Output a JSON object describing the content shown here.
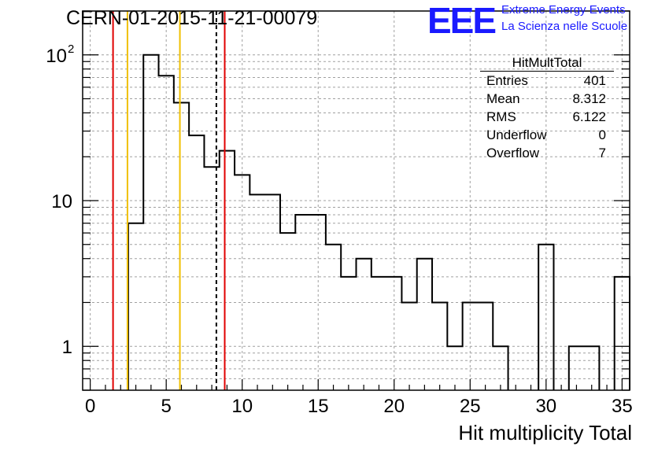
{
  "header": {
    "run_id": "CERN-01-2015-11-21-00079",
    "logo_text": "EEE",
    "logo_line1": "Extreme Energy Events",
    "logo_line2": "La Scienza nelle Scuole"
  },
  "stats": {
    "title": "HitMultTotal",
    "rows": [
      {
        "label": "Entries",
        "value": "401"
      },
      {
        "label": "Mean",
        "value": "8.312"
      },
      {
        "label": "RMS",
        "value": "6.122"
      },
      {
        "label": "Underflow",
        "value": "0"
      },
      {
        "label": "Overflow",
        "value": "7"
      }
    ]
  },
  "colors": {
    "red": "#e00000",
    "yellow": "#f0c000",
    "grid": "#a0a0a0",
    "axis": "#000000",
    "logo": "#1a1aff"
  },
  "chart_data": {
    "type": "bar",
    "histogram": true,
    "xlabel": "Hit multiplicity Total",
    "ylabel": "",
    "xlim": [
      -0.5,
      35.5
    ],
    "ylim": [
      0.5,
      200
    ],
    "yscale": "log",
    "grid": true,
    "x_ticks": [
      "0",
      "5",
      "10",
      "15",
      "20",
      "25",
      "30",
      "35"
    ],
    "y_ticks": [
      {
        "value": 1,
        "label": "1",
        "exp": ""
      },
      {
        "value": 10,
        "label": "10",
        "exp": ""
      },
      {
        "value": 100,
        "label": "10",
        "exp": "2"
      }
    ],
    "bin_width": 1,
    "bin_start": -0.5,
    "values": [
      0,
      0,
      0,
      7,
      100,
      72,
      47,
      28,
      17,
      22,
      15,
      11,
      11,
      6,
      8,
      8,
      5,
      3,
      4,
      3,
      3,
      2,
      4,
      2,
      1,
      2,
      2,
      1,
      0,
      0,
      5,
      0,
      1,
      1,
      0,
      3
    ],
    "vertical_lines": [
      {
        "x": 1.5,
        "color": "#e00000",
        "style": "solid"
      },
      {
        "x": 2.45,
        "color": "#f0c000",
        "style": "solid"
      },
      {
        "x": 5.9,
        "color": "#f0c000",
        "style": "solid"
      },
      {
        "x": 8.3,
        "color": "#000000",
        "style": "dashed"
      },
      {
        "x": 8.85,
        "color": "#e00000",
        "style": "solid"
      }
    ]
  }
}
